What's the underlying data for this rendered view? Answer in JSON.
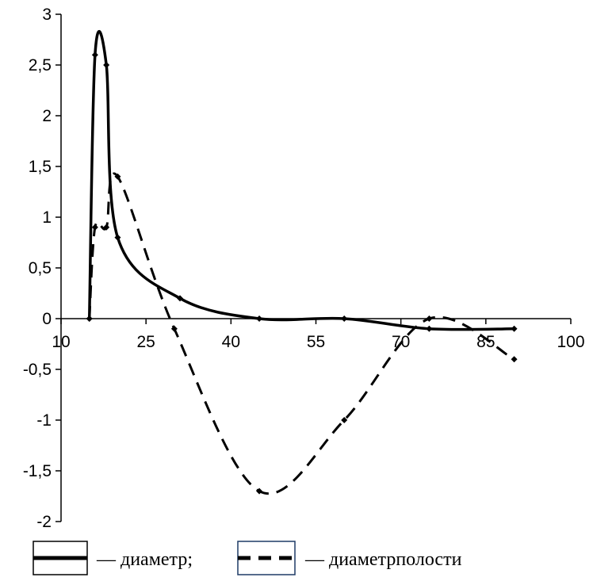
{
  "chart_data": {
    "type": "line",
    "title": "",
    "xlabel": "",
    "ylabel": "",
    "xlim": [
      10,
      100
    ],
    "ylim": [
      -2,
      3
    ],
    "x_ticks": [
      10,
      25,
      40,
      55,
      70,
      85,
      100
    ],
    "x_tick_labels": [
      "10",
      "25",
      "40",
      "55",
      "70",
      "85",
      "100"
    ],
    "y_ticks": [
      3,
      2.5,
      2,
      1.5,
      1,
      0.5,
      0,
      -0.5,
      -1,
      -1.5,
      -2
    ],
    "y_tick_labels": [
      "3",
      "2,5",
      "2",
      "1,5",
      "1",
      "0,5",
      "0",
      "-0,5",
      "-1",
      "-1,5",
      "-2"
    ],
    "grid": false,
    "legend_position": "bottom",
    "series": [
      {
        "name": "— диаметр;",
        "style": "solid",
        "color": "#000000",
        "x": [
          15,
          16,
          18,
          20,
          31,
          45,
          60,
          75,
          90
        ],
        "y": [
          0,
          2.6,
          2.5,
          0.8,
          0.2,
          0,
          0,
          -0.1,
          -0.1
        ]
      },
      {
        "name": "— диаметрполости",
        "style": "dashed",
        "color": "#000000",
        "x": [
          15,
          16,
          18,
          20,
          30,
          45,
          60,
          75,
          90
        ],
        "y": [
          0,
          0.9,
          0.9,
          1.4,
          -0.1,
          -1.7,
          -1,
          0,
          -0.4
        ]
      }
    ]
  }
}
